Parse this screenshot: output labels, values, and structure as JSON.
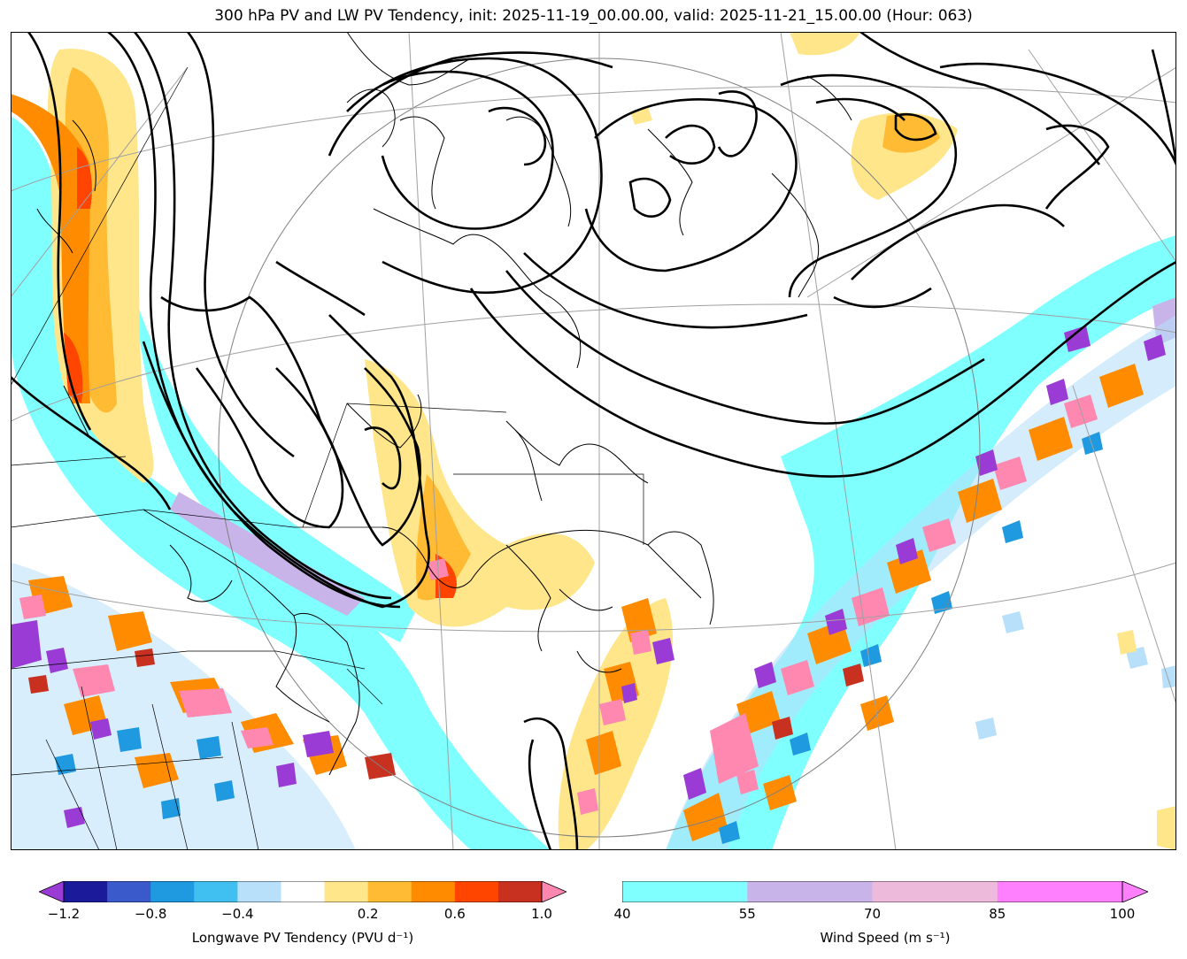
{
  "title": "300 hPa PV and LW PV Tendency, init: 2025-11-19_00.00.00, valid: 2025-11-21_15.00.00 (Hour: 063)",
  "colors": {
    "tendency": [
      "#9b3bd6",
      "#1a1a9a",
      "#3a5acc",
      "#1f9ae0",
      "#40c0f0",
      "#b8e0fa",
      "#ffffff",
      "#ffe68a",
      "#ffbb33",
      "#ff8c00",
      "#ff4500",
      "#c83020",
      "#ff88b0"
    ],
    "wind": [
      "#80ffff",
      "#c8b4e8",
      "#eebadb",
      "#ff80ff"
    ]
  },
  "colorbars": {
    "tendency": {
      "label": "Longwave PV Tendency (PVU d⁻¹)",
      "ticks": [
        "−1.2",
        "−0.8",
        "−0.4",
        "0.2",
        "0.6",
        "1.0"
      ]
    },
    "wind": {
      "label": "Wind Speed (m s⁻¹)",
      "ticks": [
        "40",
        "55",
        "70",
        "85",
        "100"
      ]
    }
  }
}
